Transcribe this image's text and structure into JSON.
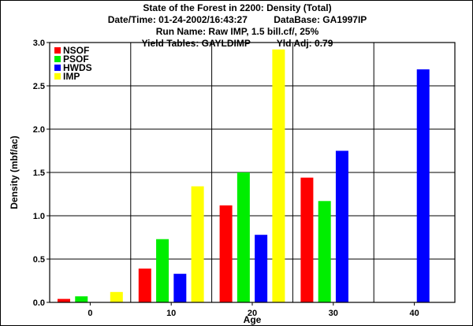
{
  "header": {
    "line1": "State of the Forest in 2200: Density (Total)",
    "datetime": "Date/Time: 01-24-2002/16:43:27",
    "database": "DataBase: GA1997IP",
    "run_name": "Run Name: Raw IMP, 1.5 bill.cf/, 25%",
    "yield_tables": "Yield Tables: GAYLDIMP",
    "yld_adj": "Yld Adj: 0.79"
  },
  "chart_data": {
    "type": "bar",
    "title": "State of the Forest in 2200: Density (Total)",
    "xlabel": "Age",
    "ylabel": "Density (mbf/ac)",
    "categories": [
      "0",
      "10",
      "20",
      "30",
      "40"
    ],
    "ylim": [
      0,
      3.0
    ],
    "yticks": [
      "0.0",
      "0.5",
      "1.0",
      "1.5",
      "2.0",
      "2.5",
      "3.0"
    ],
    "grid": true,
    "legend_position": "top-left",
    "series": [
      {
        "name": "NSOF",
        "color": "#ff0000",
        "values": [
          0.04,
          0.39,
          1.12,
          1.44,
          null
        ]
      },
      {
        "name": "PSOF",
        "color": "#00ee00",
        "values": [
          0.07,
          0.73,
          1.5,
          1.17,
          null
        ]
      },
      {
        "name": "HWDS",
        "color": "#0000ff",
        "values": [
          null,
          0.33,
          0.78,
          1.75,
          2.69
        ]
      },
      {
        "name": "IMP",
        "color": "#ffff00",
        "values": [
          0.12,
          1.34,
          2.92,
          null,
          null
        ]
      }
    ]
  }
}
